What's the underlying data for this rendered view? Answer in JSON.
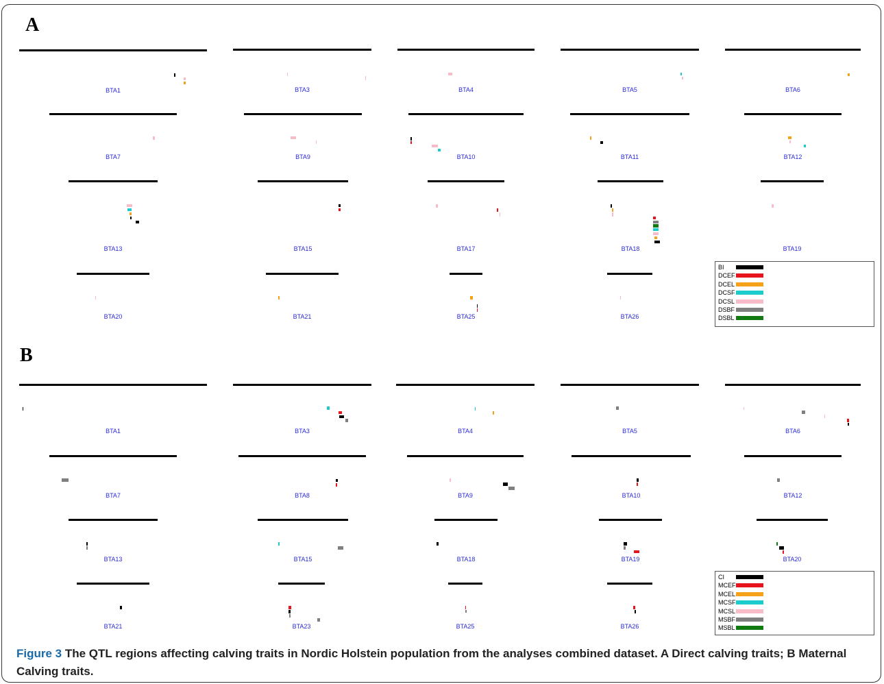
{
  "figure": {
    "caption_label": "Figure 3",
    "caption_text": "The QTL regions affecting calving traits in Nordic Holstein population from the analyses combined dataset. A Direct calving traits; B Maternal Calving traits."
  },
  "colors": {
    "black": "#000000",
    "red": "#e8141c",
    "orange": "#f5a21a",
    "cyan": "#1ccccc",
    "pink": "#f7bcc8",
    "gray": "#808080",
    "green": "#117a11"
  },
  "panels": [
    {
      "label": "A",
      "legend": [
        {
          "name": "BI",
          "color": "#000000"
        },
        {
          "name": "DCEF",
          "color": "#e8141c"
        },
        {
          "name": "DCEL",
          "color": "#f5a21a"
        },
        {
          "name": "DCSF",
          "color": "#1ccccc"
        },
        {
          "name": "DCSL",
          "color": "#f7bcc8"
        },
        {
          "name": "DSBF",
          "color": "#808080"
        },
        {
          "name": "DSBL",
          "color": "#117a11"
        }
      ],
      "chromosomes": [
        {
          "name": "BTA1"
        },
        {
          "name": "BTA3"
        },
        {
          "name": "BTA4"
        },
        {
          "name": "BTA5"
        },
        {
          "name": "BTA6"
        },
        {
          "name": "BTA7"
        },
        {
          "name": "BTA9"
        },
        {
          "name": "BTA10"
        },
        {
          "name": "BTA11"
        },
        {
          "name": "BTA12"
        },
        {
          "name": "BTA13"
        },
        {
          "name": "BTA15"
        },
        {
          "name": "BTA17"
        },
        {
          "name": "BTA18"
        },
        {
          "name": "BTA19"
        },
        {
          "name": "BTA20"
        },
        {
          "name": "BTA21"
        },
        {
          "name": "BTA25"
        },
        {
          "name": "BTA26"
        }
      ]
    },
    {
      "label": "B",
      "legend": [
        {
          "name": "CI",
          "color": "#000000"
        },
        {
          "name": "MCEF",
          "color": "#e8141c"
        },
        {
          "name": "MCEL",
          "color": "#f5a21a"
        },
        {
          "name": "MCSF",
          "color": "#1ccccc"
        },
        {
          "name": "MCSL",
          "color": "#f7bcc8"
        },
        {
          "name": "MSBF",
          "color": "#808080"
        },
        {
          "name": "MSBL",
          "color": "#117a11"
        }
      ],
      "chromosomes": [
        {
          "name": "BTA1"
        },
        {
          "name": "BTA3"
        },
        {
          "name": "BTA4"
        },
        {
          "name": "BTA5"
        },
        {
          "name": "BTA6"
        },
        {
          "name": "BTA7"
        },
        {
          "name": "BTA8"
        },
        {
          "name": "BTA9"
        },
        {
          "name": "BTA10"
        },
        {
          "name": "BTA12"
        },
        {
          "name": "BTA13"
        },
        {
          "name": "BTA15"
        },
        {
          "name": "BTA18"
        },
        {
          "name": "BTA19"
        },
        {
          "name": "BTA20"
        },
        {
          "name": "BTA21"
        },
        {
          "name": "BTA23"
        },
        {
          "name": "BTA25"
        },
        {
          "name": "BTA26"
        }
      ]
    }
  ]
}
